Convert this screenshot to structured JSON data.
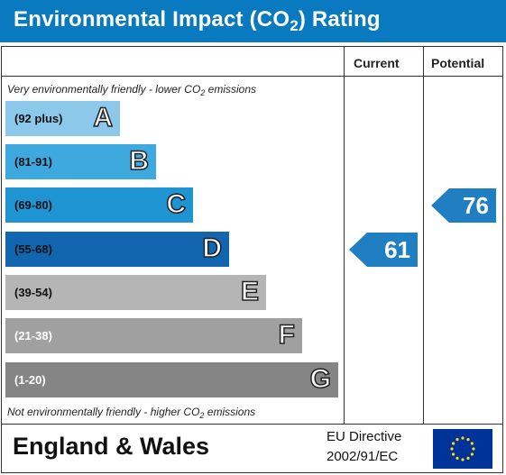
{
  "header": {
    "title_main": "Environmental Impact (CO",
    "title_sub": "2",
    "title_end": ") Rating"
  },
  "columns": {
    "current": "Current",
    "potential": "Potential"
  },
  "notes": {
    "top_main": "Very environmentally friendly - lower CO",
    "top_sub": "2",
    "top_end": " emissions",
    "bottom_main": "Not environmentally friendly - higher CO",
    "bottom_sub": "2",
    "bottom_end": " emissions"
  },
  "colors": {
    "header": "#0a7ac0",
    "arrow": "#1f7fc2",
    "eu_flag": "#003399",
    "eu_stars": "#ffdd00"
  },
  "chart_data": {
    "type": "table",
    "bands": [
      {
        "range": "(92 plus)",
        "letter": "A",
        "color": "#8cc8ea"
      },
      {
        "range": "(81-91)",
        "letter": "B",
        "color": "#3ea9df"
      },
      {
        "range": "(69-80)",
        "letter": "C",
        "color": "#1f94d2"
      },
      {
        "range": "(55-68)",
        "letter": "D",
        "color": "#1266b0"
      },
      {
        "range": "(39-54)",
        "letter": "E",
        "color": "#b5b5b5"
      },
      {
        "range": "(21-38)",
        "letter": "F",
        "color": "#a0a0a0"
      },
      {
        "range": "(1-20)",
        "letter": "G",
        "color": "#858585"
      }
    ],
    "current": {
      "value": 61,
      "label": "61",
      "band": "D"
    },
    "potential": {
      "value": 76,
      "label": "76",
      "band": "C"
    }
  },
  "footer": {
    "region": "England & Wales",
    "directive_line1": "EU Directive",
    "directive_line2": "2002/91/EC"
  }
}
